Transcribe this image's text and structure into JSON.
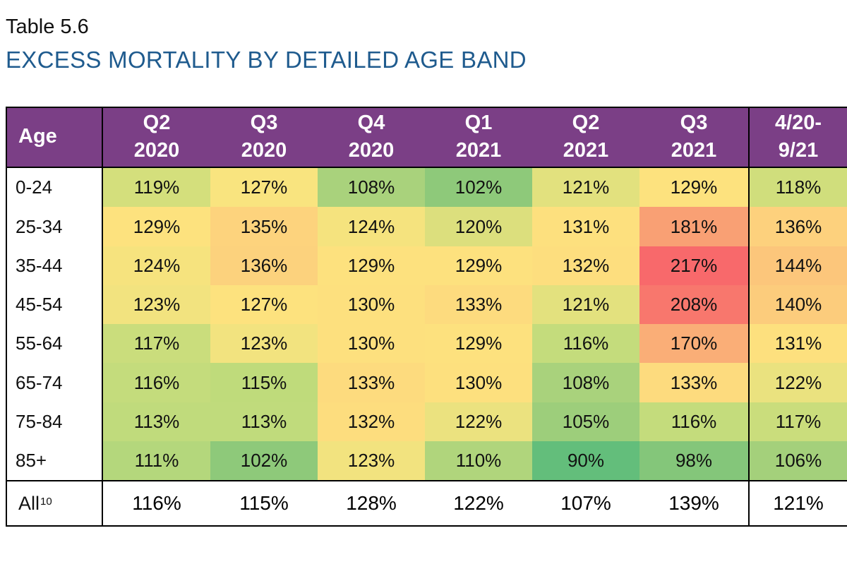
{
  "header": {
    "label": "Table 5.6",
    "title": "EXCESS MORTALITY BY DETAILED AGE BAND"
  },
  "colors": {
    "header_bg": "#7b3f86",
    "title": "#1f5b8e"
  },
  "table": {
    "age_header": "Age",
    "columns": [
      {
        "line1": "Q2",
        "line2": "2020"
      },
      {
        "line1": "Q3",
        "line2": "2020"
      },
      {
        "line1": "Q4",
        "line2": "2020"
      },
      {
        "line1": "Q1",
        "line2": "2021"
      },
      {
        "line1": "Q2",
        "line2": "2021"
      },
      {
        "line1": "Q3",
        "line2": "2021"
      },
      {
        "line1": "4/20-",
        "line2": "9/21"
      }
    ],
    "rows": [
      {
        "age": "0-24",
        "values": [
          "119%",
          "127%",
          "108%",
          "102%",
          "121%",
          "129%",
          "118%"
        ],
        "colors": [
          "#d4df7c",
          "#f9e47f",
          "#a9d27c",
          "#8ec97a",
          "#e2e17e",
          "#fde27e",
          "#d0de7c"
        ]
      },
      {
        "age": "25-34",
        "values": [
          "129%",
          "135%",
          "124%",
          "120%",
          "131%",
          "181%",
          "136%"
        ],
        "colors": [
          "#fde27e",
          "#fdd37d",
          "#f5e37e",
          "#dcdf7d",
          "#fde07e",
          "#f9a074",
          "#fdd17d"
        ]
      },
      {
        "age": "35-44",
        "values": [
          "124%",
          "136%",
          "129%",
          "129%",
          "132%",
          "217%",
          "144%"
        ],
        "colors": [
          "#f6e37e",
          "#fcd27d",
          "#fde17e",
          "#fde17e",
          "#fdde7e",
          "#f8696b",
          "#fcc67b"
        ]
      },
      {
        "age": "45-54",
        "values": [
          "123%",
          "127%",
          "130%",
          "133%",
          "121%",
          "208%",
          "140%"
        ],
        "colors": [
          "#f2e37f",
          "#fde27e",
          "#fde07e",
          "#fddb7e",
          "#e3e17e",
          "#f8776d",
          "#fccc7c"
        ]
      },
      {
        "age": "55-64",
        "values": [
          "117%",
          "123%",
          "130%",
          "129%",
          "116%",
          "170%",
          "131%"
        ],
        "colors": [
          "#cadd7c",
          "#f2e37f",
          "#fde07e",
          "#fde17e",
          "#c4dc7c",
          "#faae77",
          "#fde07e"
        ]
      },
      {
        "age": "65-74",
        "values": [
          "116%",
          "115%",
          "133%",
          "130%",
          "108%",
          "133%",
          "122%"
        ],
        "colors": [
          "#c4dc7c",
          "#bfdb7b",
          "#fddb7e",
          "#fde07e",
          "#a9d27c",
          "#fddb7e",
          "#eae27f"
        ]
      },
      {
        "age": "75-84",
        "values": [
          "113%",
          "113%",
          "132%",
          "122%",
          "105%",
          "116%",
          "117%"
        ],
        "colors": [
          "#c0db7c",
          "#c0db7c",
          "#fddd7e",
          "#ebe27f",
          "#9dce7b",
          "#c4dc7c",
          "#cadd7c"
        ]
      },
      {
        "age": "85+",
        "values": [
          "111%",
          "102%",
          "123%",
          "110%",
          "90%",
          "98%",
          "106%"
        ],
        "colors": [
          "#b4d77c",
          "#8ec97a",
          "#f2e37f",
          "#b0d57c",
          "#63be7b",
          "#84c67a",
          "#a4d07b"
        ]
      }
    ],
    "total": {
      "label": "All",
      "footnote": "10",
      "values": [
        "116%",
        "115%",
        "128%",
        "122%",
        "107%",
        "139%",
        "121%"
      ]
    }
  }
}
